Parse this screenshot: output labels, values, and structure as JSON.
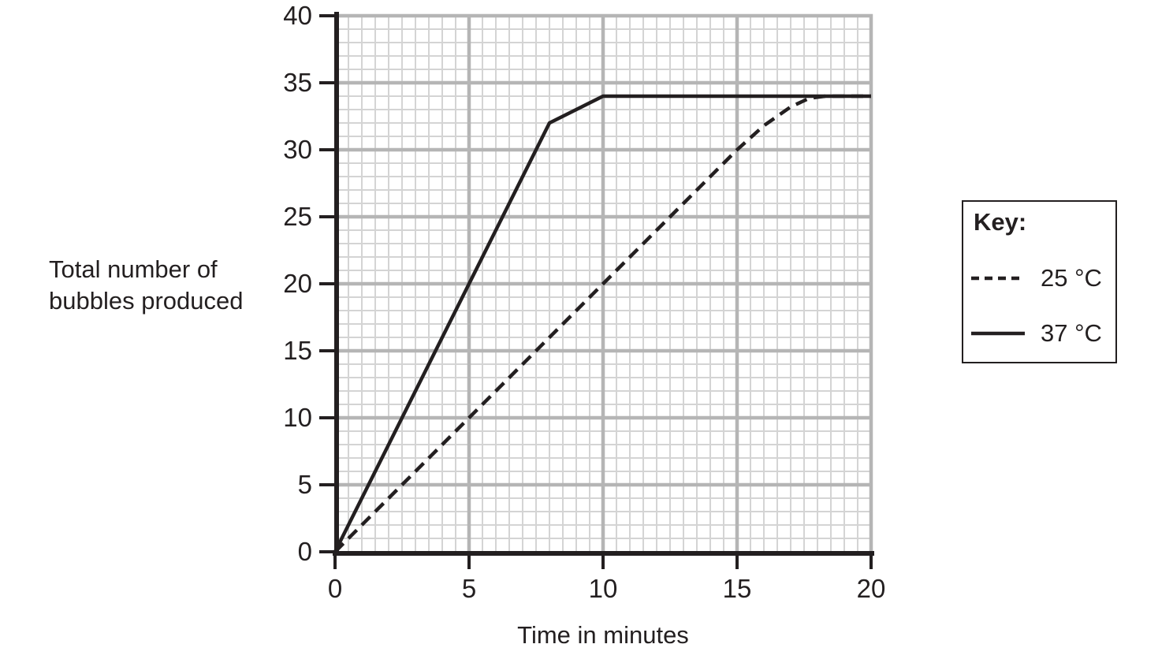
{
  "figure": {
    "background": "#ffffff",
    "ink_color": "#231f20",
    "grid_minor_color": "#d4d4d4",
    "grid_major_color": "#b5b5b5"
  },
  "chart_data": {
    "type": "line",
    "title": "",
    "xlabel": "Time in minutes",
    "ylabel": "Total number of bubbles produced",
    "xlim": [
      0,
      20
    ],
    "ylim": [
      0,
      40
    ],
    "x_ticks": [
      0,
      5,
      10,
      15,
      20
    ],
    "y_ticks": [
      0,
      5,
      10,
      15,
      20,
      25,
      30,
      35,
      40
    ],
    "grid": {
      "on": true,
      "x_minor_step": 0.5,
      "y_minor_step": 1,
      "x_major_step": 5,
      "y_major_step": 5
    },
    "series": [
      {
        "name": "25 °C",
        "style": "dashed",
        "color": "#231f20",
        "points": [
          [
            0,
            0
          ],
          [
            5,
            10
          ],
          [
            10,
            20
          ],
          [
            15,
            30
          ],
          [
            16,
            31.8
          ],
          [
            17,
            33.2
          ],
          [
            17.7,
            33.85
          ],
          [
            18.3,
            34
          ],
          [
            20,
            34
          ]
        ]
      },
      {
        "name": "37 °C",
        "style": "solid",
        "color": "#231f20",
        "points": [
          [
            0,
            0
          ],
          [
            8,
            32
          ],
          [
            10,
            34
          ],
          [
            20,
            34
          ]
        ]
      }
    ],
    "legend": {
      "title": "Key:",
      "position": "right",
      "entries": [
        {
          "label": "25 °C",
          "style": "dashed"
        },
        {
          "label": "37 °C",
          "style": "solid"
        }
      ]
    }
  }
}
